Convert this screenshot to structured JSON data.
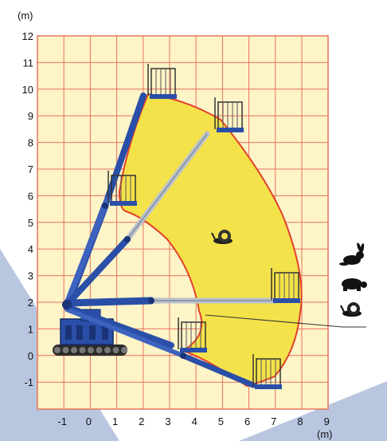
{
  "diagram": {
    "y_unit": "(m)",
    "x_unit": "(m)",
    "y_ticks": [
      "12",
      "11",
      "10",
      "9",
      "8",
      "7",
      "6",
      "5",
      "4",
      "3",
      "2",
      "1",
      "0",
      "-1"
    ],
    "x_ticks": [
      "-1",
      "0",
      "1",
      "2",
      "3",
      "4",
      "5",
      "6",
      "7",
      "8",
      "9"
    ],
    "speed_legend": [
      {
        "icon": "rabbit-icon",
        "meaning": "fast"
      },
      {
        "icon": "turtle-icon",
        "meaning": "medium"
      },
      {
        "icon": "snail-icon",
        "meaning": "slow"
      }
    ],
    "colors": {
      "grid_bg": "#fdf4c8",
      "grid_line": "#e8735a",
      "envelope": "#f4e24a",
      "envelope_edge": "#e2402a",
      "boom_blue": "#2a4fa8",
      "boom_grey": "#b9c1cc",
      "corner_band": "#b8c6e0"
    }
  }
}
